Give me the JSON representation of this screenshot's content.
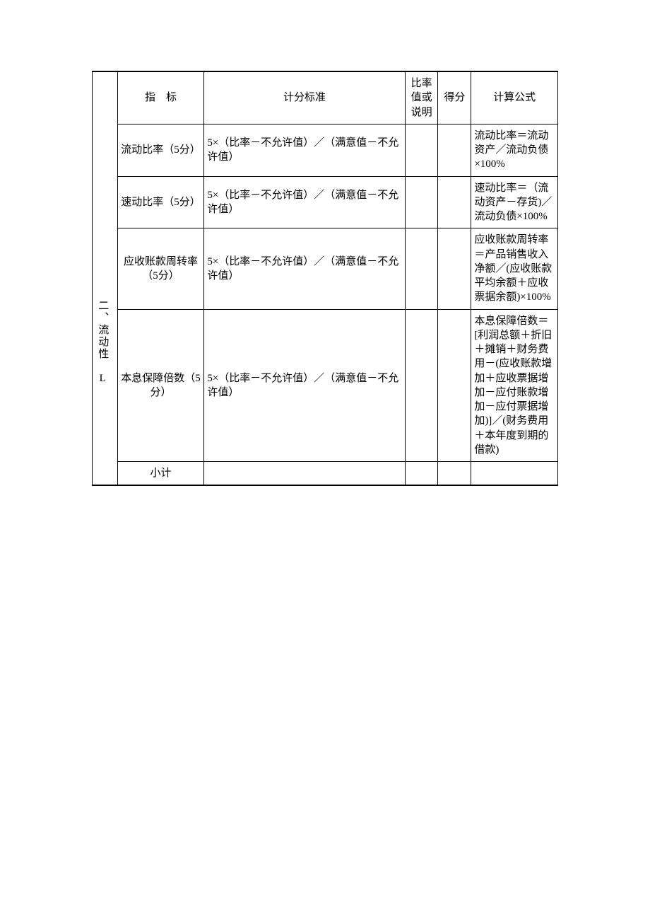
{
  "header": {
    "col1": "指　标",
    "col2": "计分标准",
    "col3": "比率值或说明",
    "col4": "得分",
    "col5": "计算公式"
  },
  "category": "二、流动性 L",
  "rows": [
    {
      "metric": "流动比率（5分）",
      "rule": "5×（比率－不允许值）／（满意值－不允许值）",
      "formula": "流动比率＝流动资产／流动负债×100%"
    },
    {
      "metric": "速动比率（5分）",
      "rule": "5×（比率－不允许值）／（满意值－不允许值）",
      "formula": "速动比率＝（流动资产－存货)／流动负债×100%"
    },
    {
      "metric": "应收账款周转率（5分）",
      "rule": "5×（比率－不允许值）／（满意值－不允许值）",
      "formula": "应收账款周转率＝产品销售收入净额／(应收账款平均余额＋应收票据余额)×100%"
    },
    {
      "metric": "本息保障倍数（5分）",
      "rule": "5×（比率－不允许值）／（满意值－不允许值）",
      "formula": "本息保障倍数＝[利润总额＋折旧＋摊销＋财务费用－(应收账款增加＋应收票据增加－应付账款增加－应付票据增加)]／(财务费用＋本年度到期的借款)"
    }
  ],
  "subtotal": "小计"
}
